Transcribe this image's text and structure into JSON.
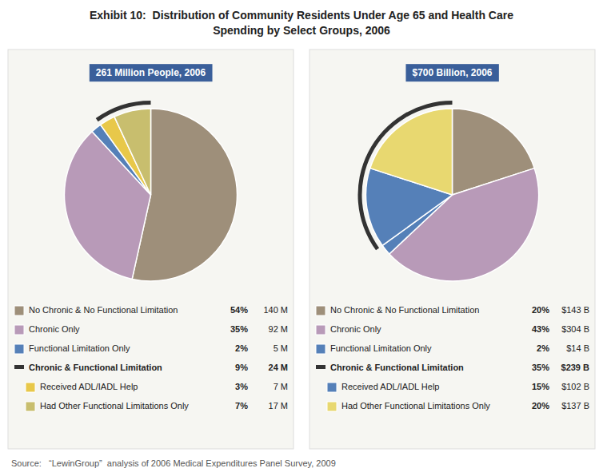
{
  "title": [
    "Exhibit 10:  Distribution of Community Residents Under Age 65 and Health Care",
    "Spending by Select Groups, 2006"
  ],
  "source": "Source:   “LewinGroup”  analysis of 2006 Medical Expenditures Panel Survey, 2009",
  "chart_data": [
    {
      "type": "pie",
      "title": "261 Million People, 2006",
      "categories": [
        "No Chronic & No Functional Limitation",
        "Chronic Only",
        "Functional Limitation Only",
        "Received ADL/IADL Help",
        "Had Other Functional Limitations Only"
      ],
      "values": [
        54,
        35,
        2,
        3,
        7
      ],
      "value_labels": [
        "54%",
        "35%",
        "2%",
        "3%",
        "7%"
      ],
      "amounts": [
        140,
        92,
        5,
        7,
        17
      ],
      "amount_labels": [
        "140 M",
        "92 M",
        "5 M",
        "7 M",
        "17 M"
      ],
      "colors": [
        "#9e8f7a",
        "#b89ab8",
        "#5580b8",
        "#e8c84a",
        "#c8be6e"
      ],
      "group": {
        "label": "Chronic & Functional Limitation",
        "value": 9,
        "value_label": "9%",
        "amount": 24,
        "amount_label": "24 M",
        "members": [
          "Received ADL/IADL Help",
          "Had Other Functional Limitations Only"
        ]
      }
    },
    {
      "type": "pie",
      "title": "$700 Billion, 2006",
      "categories": [
        "No Chronic & No Functional Limitation",
        "Chronic Only",
        "Functional Limitation Only",
        "Received ADL/IADL Help",
        "Had Other Functional Limitations Only"
      ],
      "values": [
        20,
        43,
        2,
        15,
        20
      ],
      "value_labels": [
        "20%",
        "43%",
        "2%",
        "15%",
        "20%"
      ],
      "amounts": [
        143,
        304,
        14,
        102,
        137
      ],
      "amount_labels": [
        "$143 B",
        "$304 B",
        "$14 B",
        "$102 B",
        "$137 B"
      ],
      "colors": [
        "#9e8f7a",
        "#b89ab8",
        "#5580b8",
        "#5580b8",
        "#e8d870"
      ],
      "group": {
        "label": "Chronic & Functional Limitation",
        "value": 35,
        "value_label": "35%",
        "amount": 239,
        "amount_label": "$239 B",
        "members": [
          "Received ADL/IADL Help",
          "Had Other Functional Limitations Only"
        ]
      }
    }
  ]
}
